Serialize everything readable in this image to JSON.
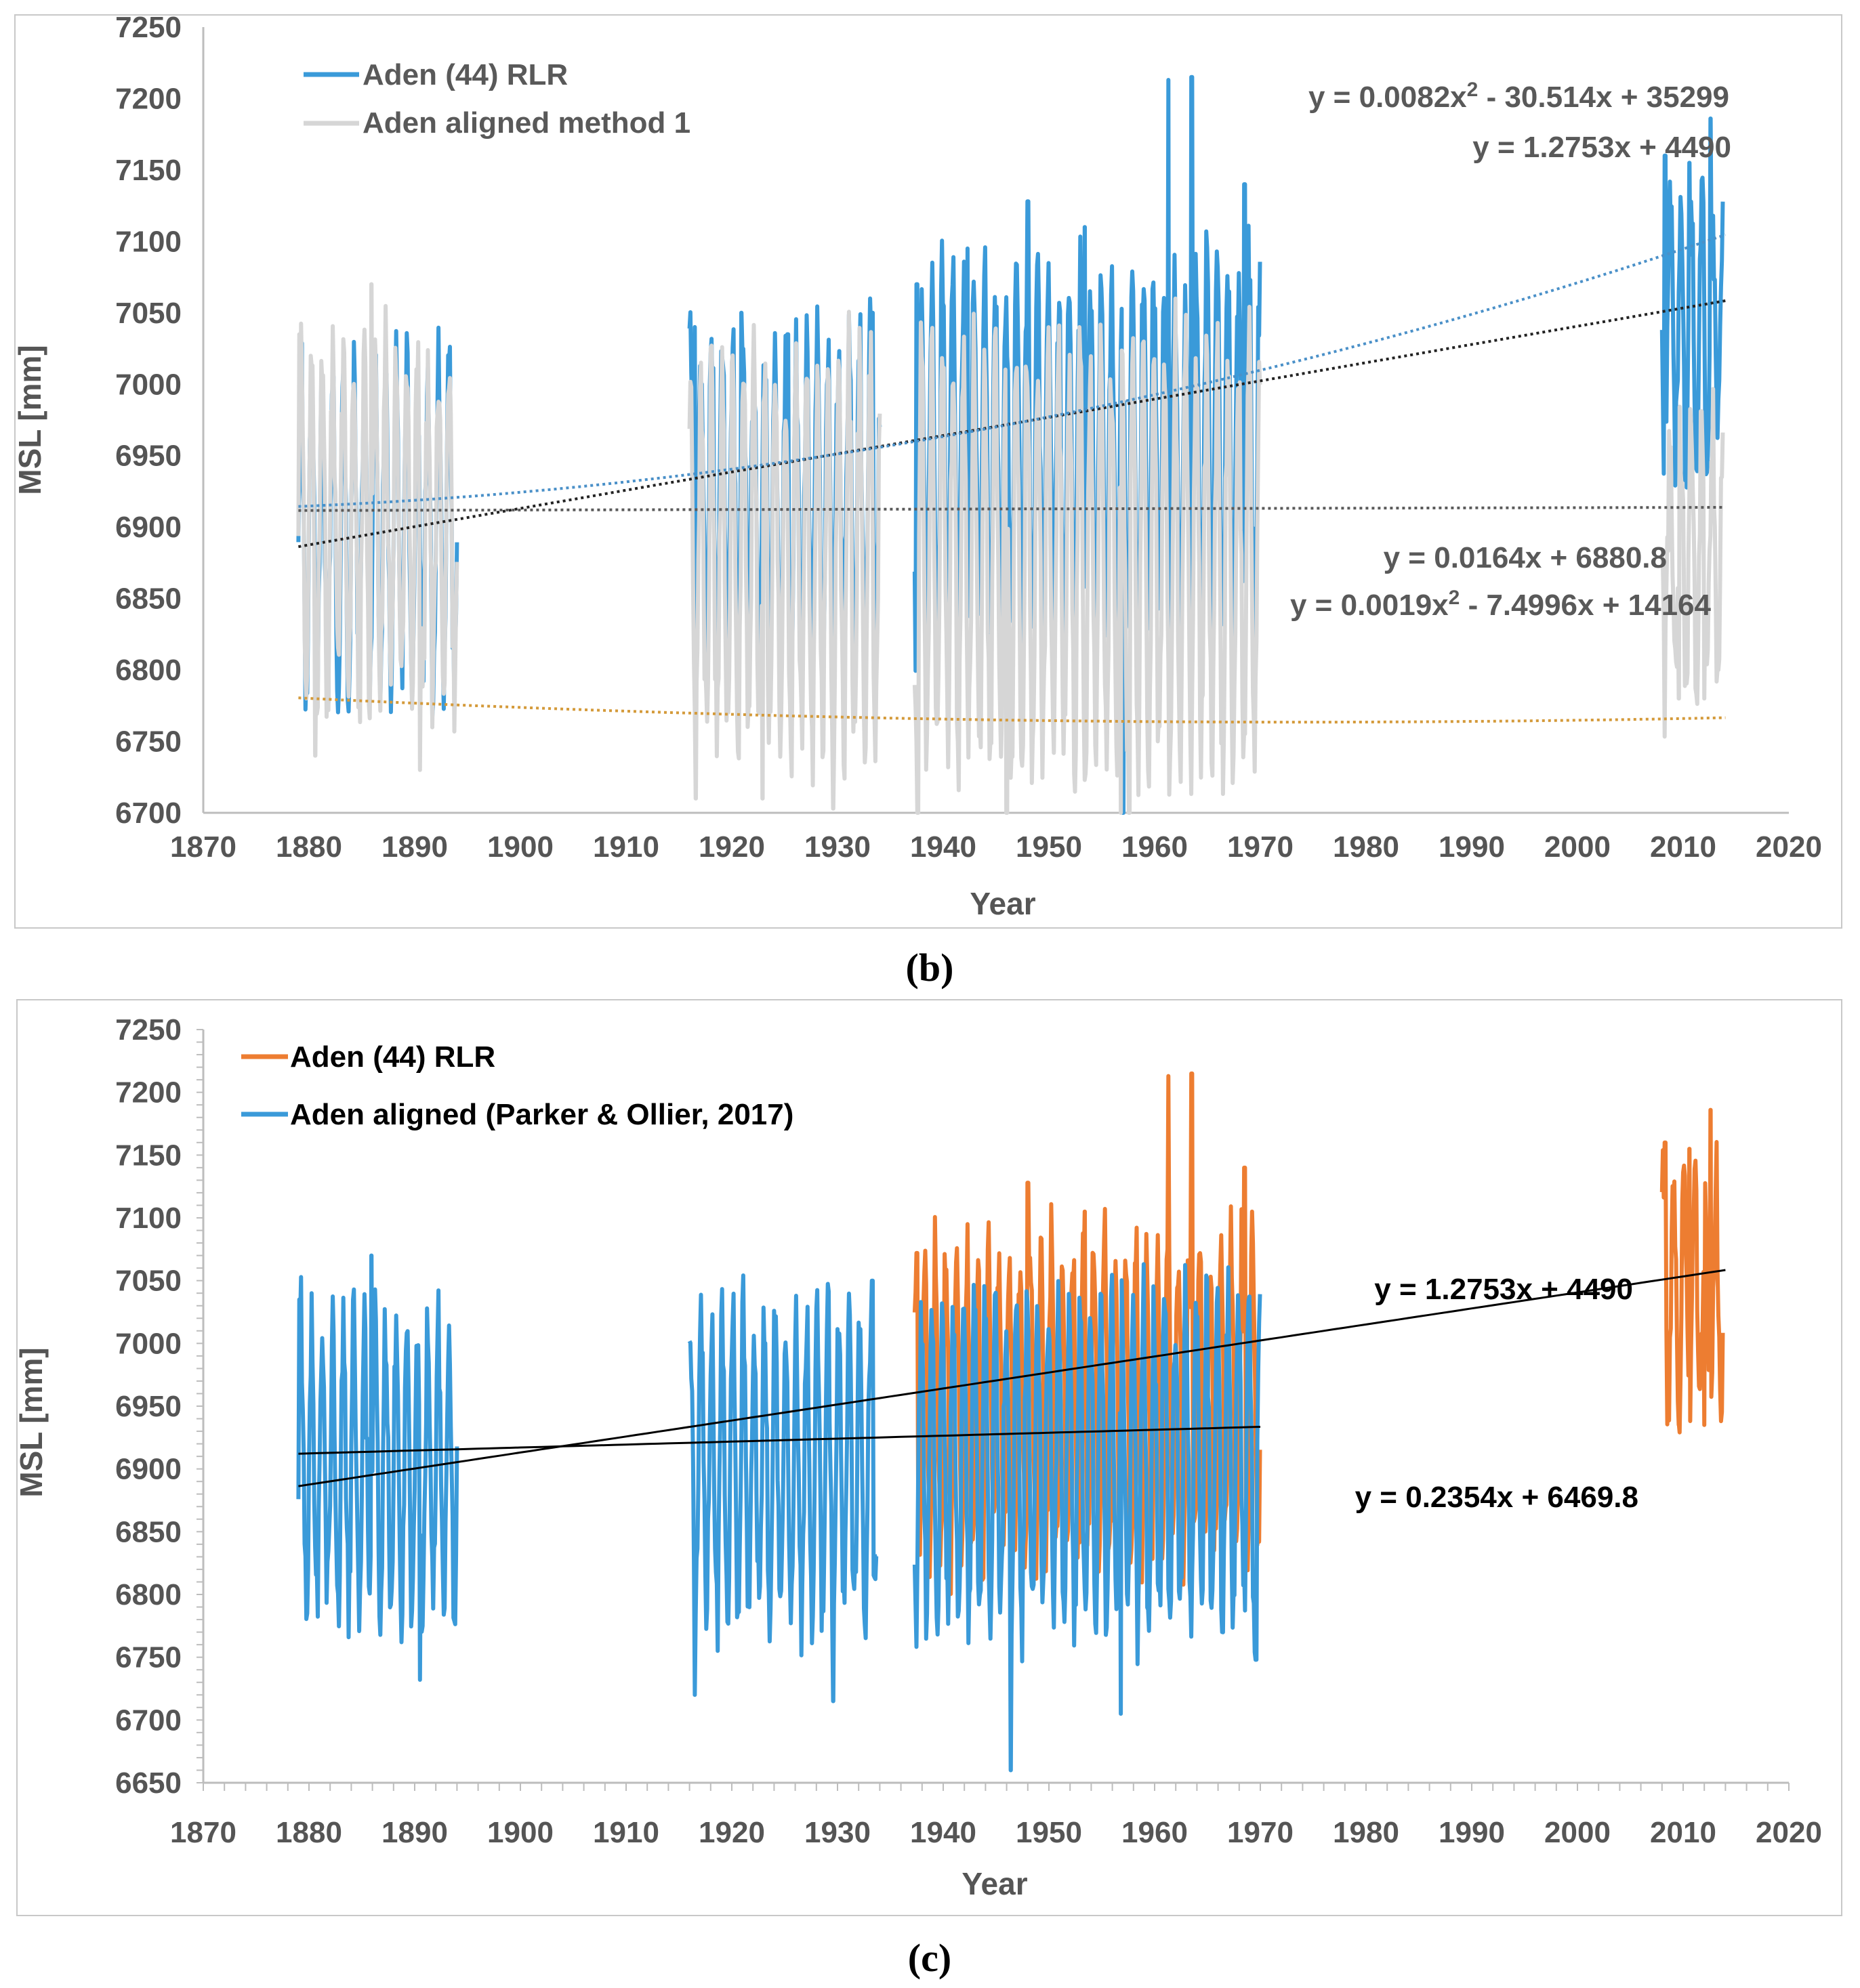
{
  "panels": [
    {
      "label_open": "(",
      "label_letter": "b",
      "label_close": ")",
      "legend": [
        "Aden (44) RLR",
        "Aden aligned method 1"
      ],
      "equations": [
        {
          "sup": true,
          "a": "y = 0.0082x",
          "b": " - 30.514x + 35299",
          "color": "#595959"
        },
        {
          "sup": false,
          "a": "y = 1.2753x + 4490",
          "b": "",
          "color": "#595959"
        },
        {
          "sup": false,
          "a": "y = 0.0164x + 6880.8",
          "b": "",
          "color": "#595959"
        },
        {
          "sup": true,
          "a": "y = 0.0019x",
          "b": " - 7.4996x + 14164",
          "color": "#595959"
        }
      ]
    },
    {
      "label_open": "(",
      "label_letter": "c",
      "label_close": ")",
      "legend": [
        "Aden (44) RLR",
        "Aden aligned (Parker & Ollier, 2017)"
      ],
      "equations": [
        {
          "sup": false,
          "a": "y = 1.2753x + 4490",
          "b": "",
          "color": "#000000"
        },
        {
          "sup": false,
          "a": "y = 0.2354x + 6469.8",
          "b": "",
          "color": "#000000"
        }
      ]
    }
  ],
  "chart_data": [
    {
      "type": "line",
      "panel": "(b)",
      "title": "",
      "xlabel": "Year",
      "ylabel": "MSL [mm]",
      "xlim": [
        1870,
        2020
      ],
      "ylim": [
        6700,
        7250
      ],
      "xticks": [
        1870,
        1880,
        1890,
        1900,
        1910,
        1920,
        1930,
        1940,
        1950,
        1960,
        1970,
        1980,
        1990,
        2000,
        2010,
        2020
      ],
      "yticks": [
        6700,
        6750,
        6800,
        6850,
        6900,
        6950,
        7000,
        7050,
        7100,
        7150,
        7200,
        7250
      ],
      "legend_position": "top-left",
      "series": [
        {
          "name": "Aden (44) RLR",
          "color": "#3a9ad9",
          "segments": [
            {
              "start": 1879.0,
              "end": 1894.0,
              "mean": 6900,
              "amplitude": 130,
              "extra": []
            },
            {
              "start": 1916.0,
              "end": 1934.0,
              "mean": 6915,
              "amplitude": 125,
              "extra": [
                [
                  1916.5,
                  7040
                ],
                [
                  1920.9,
                  7050
                ],
                [
                  1925.3,
                  7035
                ],
                [
                  1933.3,
                  7050
                ]
              ]
            },
            {
              "start": 1937.3,
              "end": 1970.0,
              "mean": 6950,
              "amplitude": 140,
              "extra": [
                [
                  1937.5,
                  7070
                ],
                [
                  1942.3,
                  7095
                ],
                [
                  1948.0,
                  7128
                ],
                [
                  1953.4,
                  7110
                ],
                [
                  1957.0,
                  6700
                ],
                [
                  1961.3,
                  7213
                ],
                [
                  1963.5,
                  7215
                ],
                [
                  1968.5,
                  7140
                ]
              ]
            },
            {
              "start": 2008.0,
              "end": 2013.8,
              "mean": 7040,
              "amplitude": 110,
              "extra": [
                [
                  2008.3,
                  7160
                ],
                [
                  2010.6,
                  7155
                ],
                [
                  2012.6,
                  7186
                ]
              ]
            }
          ]
        },
        {
          "name": "Aden aligned method 1",
          "color": "#d6d6d6",
          "segments": [
            {
              "start": 1879.0,
              "end": 1894.0,
              "mean": 6900,
              "amplitude": 130,
              "extra": [
                [
                  1879.1,
                  7035
                ],
                [
                  1885.9,
                  7070
                ],
                [
                  1890.5,
                  6730
                ],
                [
                  1880.6,
                  6740
                ]
              ]
            },
            {
              "start": 1916.0,
              "end": 1934.0,
              "mean": 6880,
              "amplitude": 150,
              "extra": [
                [
                  1916.6,
                  6710
                ],
                [
                  1922.9,
                  6710
                ],
                [
                  1929.6,
                  6703
                ]
              ]
            },
            {
              "start": 1937.3,
              "end": 1970.0,
              "mean": 6880,
              "amplitude": 160,
              "extra": [
                [
                  1937.6,
                  6700
                ],
                [
                  1946.0,
                  6700
                ],
                [
                  1956.8,
                  6700
                ],
                [
                  1957.6,
                  6700
                ]
              ]
            },
            {
              "start": 2008.0,
              "end": 2013.8,
              "mean": 6880,
              "amplitude": 100,
              "extra": [
                [
                  2009.6,
                  6780
                ],
                [
                  2012.0,
                  6780
                ],
                [
                  2013.3,
                  6800
                ]
              ]
            }
          ]
        }
      ],
      "trendlines": [
        {
          "kind": "linear",
          "slope": 1.2753,
          "intercept": 4490,
          "x0": 1879,
          "x1": 2014,
          "color": "#222222",
          "dotted": true
        },
        {
          "kind": "quadratic",
          "a": 0.0082,
          "b": -30.514,
          "c": 35299,
          "x0": 1879,
          "x1": 2014,
          "color": "#4a90c8",
          "dotted": true
        },
        {
          "kind": "linear",
          "slope": 0.0164,
          "intercept": 6880.8,
          "x0": 1879,
          "x1": 2014,
          "color": "#5a5a5a",
          "dotted": true
        },
        {
          "kind": "quadratic",
          "a": 0.0019,
          "b": -7.4996,
          "c": 14164,
          "x0": 1879,
          "x1": 2014,
          "color": "#d49a3a",
          "dotted": true
        }
      ]
    },
    {
      "type": "line",
      "panel": "(c)",
      "title": "",
      "xlabel": "Year",
      "ylabel": "MSL [mm]",
      "xlim": [
        1870,
        2020
      ],
      "ylim": [
        6650,
        7250
      ],
      "xticks": [
        1870,
        1880,
        1890,
        1900,
        1910,
        1920,
        1930,
        1940,
        1950,
        1960,
        1970,
        1980,
        1990,
        2000,
        2010,
        2020
      ],
      "yticks": [
        6650,
        6700,
        6750,
        6800,
        6850,
        6900,
        6950,
        7000,
        7050,
        7100,
        7150,
        7200,
        7250
      ],
      "legend_position": "top-left",
      "series": [
        {
          "name": "Aden (44) RLR",
          "color": "#ed7d31",
          "segments": [
            {
              "start": 1937.3,
              "end": 1970.0,
              "mean": 6955,
              "amplitude": 135,
              "extra": [
                [
                  1937.5,
                  7072
                ],
                [
                  1942.3,
                  7095
                ],
                [
                  1948.0,
                  7128
                ],
                [
                  1953.4,
                  7105
                ],
                [
                  1961.3,
                  7213
                ],
                [
                  1963.5,
                  7215
                ],
                [
                  1968.5,
                  7140
                ]
              ]
            },
            {
              "start": 2008.0,
              "end": 2013.8,
              "mean": 7040,
              "amplitude": 110,
              "extra": [
                [
                  2008.3,
                  7160
                ],
                [
                  2010.6,
                  7155
                ],
                [
                  2012.6,
                  7186
                ],
                [
                  2009.6,
                  6935
                ],
                [
                  2012.0,
                  6935
                ]
              ]
            }
          ]
        },
        {
          "name": "Aden aligned (Parker & Ollier, 2017)",
          "color": "#3a9ad9",
          "segments": [
            {
              "start": 1879.0,
              "end": 1894.0,
              "mean": 6900,
              "amplitude": 130,
              "extra": [
                [
                  1879.1,
                  7035
                ],
                [
                  1885.9,
                  7070
                ],
                [
                  1890.5,
                  6732
                ]
              ]
            },
            {
              "start": 1916.0,
              "end": 1933.8,
              "mean": 6900,
              "amplitude": 135,
              "extra": [
                [
                  1916.5,
                  6720
                ],
                [
                  1929.6,
                  6715
                ],
                [
                  1933.3,
                  7050
                ]
              ]
            },
            {
              "start": 1937.3,
              "end": 1970.0,
              "mean": 6905,
              "amplitude": 140,
              "extra": [
                [
                  1946.4,
                  6660
                ],
                [
                  1956.8,
                  6705
                ],
                [
                  1969.6,
                  6748
                ]
              ]
            }
          ]
        }
      ],
      "trendlines": [
        {
          "kind": "linear",
          "slope": 1.2753,
          "intercept": 4490,
          "x0": 1879,
          "x1": 2014,
          "color": "#000000",
          "dotted": false
        },
        {
          "kind": "linear",
          "slope": 0.2354,
          "intercept": 6469.8,
          "x0": 1879,
          "x1": 1970,
          "color": "#000000",
          "dotted": false
        }
      ]
    }
  ]
}
